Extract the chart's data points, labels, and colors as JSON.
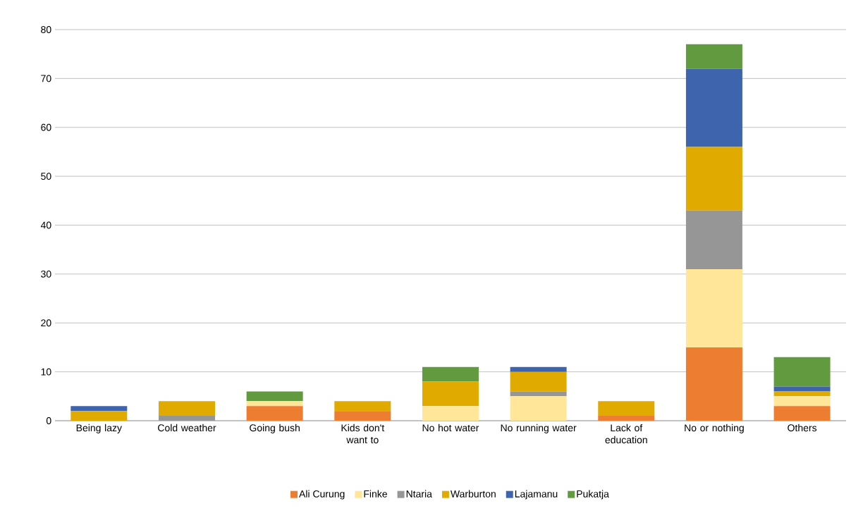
{
  "chart_data": {
    "type": "bar",
    "stacked": true,
    "categories": [
      "Being lazy",
      "Cold weather",
      "Going bush",
      "Kids don't want to",
      "No hot water",
      "No running water",
      "Lack of education",
      "No or nothing",
      "Others"
    ],
    "series": [
      {
        "name": "Ali Curung",
        "color": "#ed7d31",
        "values": [
          0,
          0,
          3,
          2,
          0,
          0,
          1,
          15,
          3
        ]
      },
      {
        "name": "Finke",
        "color": "#ffe699",
        "values": [
          0,
          0,
          1,
          0,
          3,
          5,
          0,
          16,
          2
        ]
      },
      {
        "name": "Ntaria",
        "color": "#969696",
        "values": [
          0,
          1,
          0,
          0,
          0,
          1,
          0,
          12,
          0
        ]
      },
      {
        "name": "Warburton",
        "color": "#e0aa00",
        "values": [
          2,
          3,
          0,
          2,
          5,
          4,
          3,
          13,
          1
        ]
      },
      {
        "name": "Lajamanu",
        "color": "#3e64ae",
        "values": [
          1,
          0,
          0,
          0,
          0,
          1,
          0,
          16,
          1
        ]
      },
      {
        "name": "Pukatja",
        "color": "#629a3f",
        "values": [
          0,
          0,
          2,
          0,
          3,
          0,
          0,
          5,
          6
        ]
      }
    ],
    "ylim": [
      0,
      80
    ],
    "yticks": [
      0,
      10,
      20,
      30,
      40,
      50,
      60,
      70,
      80
    ],
    "grid": "y",
    "legend": "bottom"
  }
}
